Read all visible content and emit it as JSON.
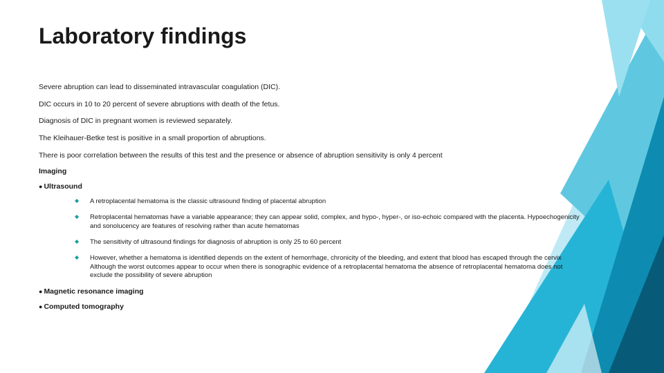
{
  "slide": {
    "title": "Laboratory findings",
    "paragraphs": [
      "Severe abruption can lead to disseminated intravascular coagulation (DIC).",
      "DIC occurs in 10 to 20 percent of severe abruptions with death of the fetus.",
      "Diagnosis of DIC in pregnant women is reviewed separately.",
      "The Kleihauer-Betke test is positive in a small proportion of abruptions.",
      " There is poor correlation between the results of this test and the presence or absence of abruption sensitivity is only 4 percent"
    ],
    "imaging_heading": "Imaging",
    "ultrasound_label": "Ultrasound",
    "ultrasound_points": [
      "A retroplacental hematoma is the classic ultrasound finding of placental abruption",
      "Retroplacental hematomas have a variable appearance; they can appear solid, complex, and hypo-, hyper-, or iso-echoic compared with the placenta. Hypoechogenicity and sonolucency are features of resolving rather than acute hematomas",
      "The sensitivity of ultrasound findings for diagnosis of abruption is only 25 to 60 percent",
      "However, whether a hematoma is identified depends on the extent of hemorrhage, chronicity of the bleeding, and extent that blood has escaped through the cervix Although the worst outcomes appear to occur when there is sonographic evidence of a retroplacental hematoma the absence of retroplacental hematoma does not exclude the possibility of severe abruption"
    ],
    "mri_label": "Magnetic resonance imaging",
    "ct_label": "Computed tomography"
  },
  "style": {
    "diamond_color": "#1c9e9e",
    "bg_colors": {
      "light": "#bfeaf5",
      "mid": "#5fc8e0",
      "teal": "#26b4d6",
      "deep": "#0e8bb0",
      "dark": "#075a78"
    }
  }
}
